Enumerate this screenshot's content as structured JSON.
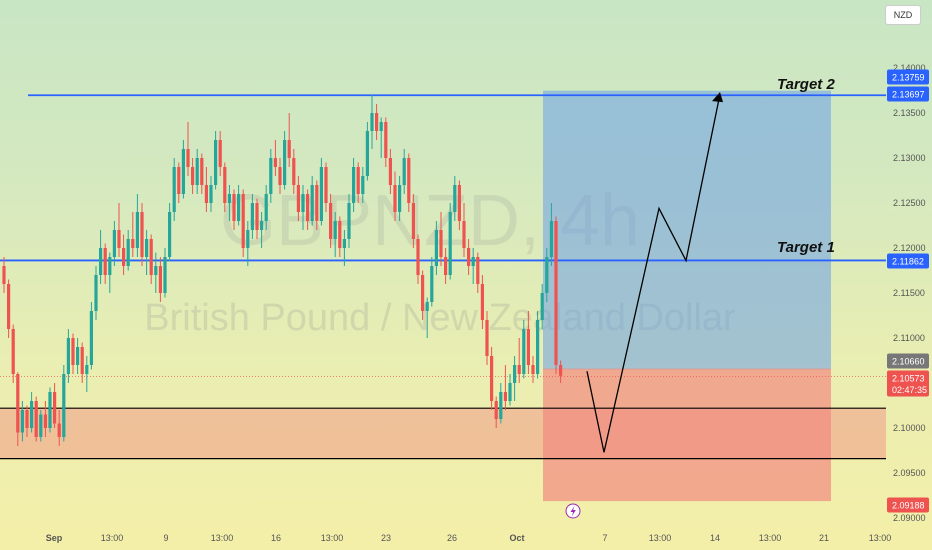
{
  "currency_button": "NZD",
  "watermark": {
    "symbol": "GBPNZD, 4h",
    "name": "British Pound / New Zealand Dollar"
  },
  "colors": {
    "up": "#26a69a",
    "down": "#ef5350",
    "level": "#2962ff",
    "target_zone": "#6a9ee8",
    "stop_zone": "#f28a80"
  },
  "chart_data": {
    "type": "candlestick",
    "symbol": "GBPNZD",
    "timeframe": "4h",
    "y_axis": {
      "range": [
        2.09,
        2.14
      ],
      "ticks": [
        "2.14000",
        "2.13500",
        "2.13000",
        "2.12500",
        "2.12000",
        "2.11500",
        "2.11000",
        "2.10000",
        "2.09500",
        "2.09000"
      ]
    },
    "x_axis": {
      "ticks": [
        "Sep",
        "13:00",
        "9",
        "13:00",
        "16",
        "13:00",
        "23",
        "26",
        "Oct",
        "7",
        "13:00",
        "14",
        "13:00",
        "21",
        "13:00"
      ]
    },
    "price_badges": [
      {
        "label": "2.13759",
        "color": "#2962ff"
      },
      {
        "label": "2.13697",
        "color": "#2962ff"
      },
      {
        "label": "2.11862",
        "color": "#2962ff"
      },
      {
        "label": "2.10660",
        "color": "#777777"
      },
      {
        "label": "2.10573",
        "sub": "02:47:35",
        "color": "#ef5350"
      },
      {
        "label": "2.09188",
        "color": "#ef5350"
      }
    ],
    "horizontal_levels": [
      {
        "price": 2.13697,
        "label": "Target 2",
        "color": "#2962ff"
      },
      {
        "price": 2.11862,
        "label": "Target 1",
        "color": "#2962ff"
      },
      {
        "price": 2.1022,
        "color": "#000000"
      },
      {
        "price": 2.0966,
        "color": "#000000"
      }
    ],
    "long_position": {
      "entry": 2.1066,
      "target": 2.13759,
      "stop": 2.09188
    },
    "support_zone": [
      2.0966,
      2.1022
    ],
    "current_price": 2.10573,
    "projection_path": [
      2.1063,
      2.0973,
      2.1244,
      2.1186,
      2.1371
    ],
    "candles": [
      [
        2.118,
        2.119,
        2.115,
        2.116
      ],
      [
        2.116,
        2.1165,
        2.11,
        2.111
      ],
      [
        2.111,
        2.1115,
        2.105,
        2.106
      ],
      [
        2.106,
        2.1062,
        2.098,
        2.0995
      ],
      [
        2.0995,
        2.103,
        2.0985,
        2.102
      ],
      [
        2.102,
        2.1025,
        2.099,
        2.1
      ],
      [
        2.1,
        2.104,
        2.0995,
        2.103
      ],
      [
        2.103,
        2.1035,
        2.0985,
        2.099
      ],
      [
        2.099,
        2.102,
        2.0985,
        2.1015
      ],
      [
        2.1015,
        2.103,
        2.099,
        2.1
      ],
      [
        2.1,
        2.1045,
        2.0995,
        2.104
      ],
      [
        2.104,
        2.105,
        2.1,
        2.1005
      ],
      [
        2.1005,
        2.102,
        2.098,
        2.099
      ],
      [
        2.099,
        2.107,
        2.0985,
        2.106
      ],
      [
        2.106,
        2.111,
        2.105,
        2.11
      ],
      [
        2.11,
        2.1105,
        2.106,
        2.107
      ],
      [
        2.107,
        2.11,
        2.106,
        2.109
      ],
      [
        2.109,
        2.1095,
        2.105,
        2.106
      ],
      [
        2.106,
        2.108,
        2.104,
        2.107
      ],
      [
        2.107,
        2.114,
        2.1065,
        2.113
      ],
      [
        2.113,
        2.118,
        2.112,
        2.117
      ],
      [
        2.117,
        2.122,
        2.116,
        2.12
      ],
      [
        2.12,
        2.1205,
        2.116,
        2.117
      ],
      [
        2.117,
        2.1195,
        2.115,
        2.119
      ],
      [
        2.119,
        2.123,
        2.118,
        2.122
      ],
      [
        2.122,
        2.125,
        2.119,
        2.12
      ],
      [
        2.12,
        2.1215,
        2.117,
        2.118
      ],
      [
        2.118,
        2.122,
        2.1175,
        2.121
      ],
      [
        2.121,
        2.124,
        2.119,
        2.12
      ],
      [
        2.12,
        2.126,
        2.119,
        2.124
      ],
      [
        2.124,
        2.125,
        2.118,
        2.119
      ],
      [
        2.119,
        2.122,
        2.117,
        2.121
      ],
      [
        2.121,
        2.1215,
        2.116,
        2.117
      ],
      [
        2.117,
        2.1195,
        2.115,
        2.118
      ],
      [
        2.118,
        2.119,
        2.114,
        2.115
      ],
      [
        2.115,
        2.12,
        2.1145,
        2.119
      ],
      [
        2.119,
        2.125,
        2.1185,
        2.124
      ],
      [
        2.124,
        2.13,
        2.123,
        2.129
      ],
      [
        2.129,
        2.1295,
        2.125,
        2.126
      ],
      [
        2.126,
        2.132,
        2.1255,
        2.131
      ],
      [
        2.131,
        2.134,
        2.128,
        2.129
      ],
      [
        2.129,
        2.13,
        2.126,
        2.127
      ],
      [
        2.127,
        2.131,
        2.126,
        2.13
      ],
      [
        2.13,
        2.1305,
        2.126,
        2.127
      ],
      [
        2.127,
        2.129,
        2.124,
        2.125
      ],
      [
        2.125,
        2.128,
        2.124,
        2.127
      ],
      [
        2.127,
        2.133,
        2.1265,
        2.132
      ],
      [
        2.132,
        2.133,
        2.128,
        2.129
      ],
      [
        2.129,
        2.1295,
        2.124,
        2.125
      ],
      [
        2.125,
        2.127,
        2.123,
        2.126
      ],
      [
        2.126,
        2.1265,
        2.122,
        2.123
      ],
      [
        2.123,
        2.127,
        2.1225,
        2.126
      ],
      [
        2.126,
        2.1265,
        2.119,
        2.12
      ],
      [
        2.12,
        2.123,
        2.118,
        2.122
      ],
      [
        2.122,
        2.126,
        2.121,
        2.125
      ],
      [
        2.125,
        2.1255,
        2.121,
        2.122
      ],
      [
        2.122,
        2.124,
        2.12,
        2.123
      ],
      [
        2.123,
        2.127,
        2.122,
        2.126
      ],
      [
        2.126,
        2.131,
        2.125,
        2.13
      ],
      [
        2.13,
        2.132,
        2.128,
        2.129
      ],
      [
        2.129,
        2.13,
        2.126,
        2.127
      ],
      [
        2.127,
        2.133,
        2.1265,
        2.132
      ],
      [
        2.132,
        2.135,
        2.129,
        2.13
      ],
      [
        2.13,
        2.131,
        2.126,
        2.127
      ],
      [
        2.127,
        2.128,
        2.123,
        2.124
      ],
      [
        2.124,
        2.127,
        2.122,
        2.126
      ],
      [
        2.126,
        2.1265,
        2.122,
        2.123
      ],
      [
        2.123,
        2.128,
        2.1225,
        2.127
      ],
      [
        2.127,
        2.1275,
        2.122,
        2.123
      ],
      [
        2.123,
        2.13,
        2.1225,
        2.129
      ],
      [
        2.129,
        2.1295,
        2.124,
        2.125
      ],
      [
        2.125,
        2.126,
        2.12,
        2.121
      ],
      [
        2.121,
        2.124,
        2.119,
        2.123
      ],
      [
        2.123,
        2.1235,
        2.119,
        2.12
      ],
      [
        2.12,
        2.122,
        2.118,
        2.121
      ],
      [
        2.121,
        2.126,
        2.12,
        2.125
      ],
      [
        2.125,
        2.13,
        2.124,
        2.129
      ],
      [
        2.129,
        2.1295,
        2.125,
        2.126
      ],
      [
        2.126,
        2.129,
        2.125,
        2.128
      ],
      [
        2.128,
        2.134,
        2.1275,
        2.133
      ],
      [
        2.133,
        2.137,
        2.131,
        2.135
      ],
      [
        2.135,
        2.136,
        2.132,
        2.133
      ],
      [
        2.133,
        2.1345,
        2.13,
        2.134
      ],
      [
        2.134,
        2.1345,
        2.129,
        2.13
      ],
      [
        2.13,
        2.131,
        2.126,
        2.127
      ],
      [
        2.127,
        2.1285,
        2.123,
        2.124
      ],
      [
        2.124,
        2.128,
        2.123,
        2.127
      ],
      [
        2.127,
        2.131,
        2.126,
        2.13
      ],
      [
        2.13,
        2.1305,
        2.124,
        2.125
      ],
      [
        2.125,
        2.126,
        2.12,
        2.121
      ],
      [
        2.121,
        2.1215,
        2.116,
        2.117
      ],
      [
        2.117,
        2.1175,
        2.112,
        2.113
      ],
      [
        2.113,
        2.1145,
        2.11,
        2.114
      ],
      [
        2.114,
        2.119,
        2.1135,
        2.118
      ],
      [
        2.118,
        2.123,
        2.117,
        2.122
      ],
      [
        2.122,
        2.124,
        2.118,
        2.119
      ],
      [
        2.119,
        2.12,
        2.116,
        2.117
      ],
      [
        2.117,
        2.125,
        2.1165,
        2.124
      ],
      [
        2.124,
        2.128,
        2.123,
        2.127
      ],
      [
        2.127,
        2.1275,
        2.122,
        2.123
      ],
      [
        2.123,
        2.125,
        2.119,
        2.12
      ],
      [
        2.12,
        2.121,
        2.117,
        2.118
      ],
      [
        2.118,
        2.12,
        2.116,
        2.119
      ],
      [
        2.119,
        2.1195,
        2.115,
        2.116
      ],
      [
        2.116,
        2.117,
        2.111,
        2.112
      ],
      [
        2.112,
        2.113,
        2.107,
        2.108
      ],
      [
        2.108,
        2.109,
        2.102,
        2.103
      ],
      [
        2.103,
        2.1035,
        2.1,
        2.101
      ],
      [
        2.101,
        2.105,
        2.1005,
        2.104
      ],
      [
        2.104,
        2.107,
        2.102,
        2.103
      ],
      [
        2.103,
        2.106,
        2.1025,
        2.105
      ],
      [
        2.105,
        2.108,
        2.103,
        2.107
      ],
      [
        2.107,
        2.11,
        2.105,
        2.106
      ],
      [
        2.106,
        2.112,
        2.1055,
        2.111
      ],
      [
        2.111,
        2.113,
        2.106,
        2.107
      ],
      [
        2.107,
        2.108,
        2.105,
        2.106
      ],
      [
        2.106,
        2.113,
        2.1055,
        2.112
      ],
      [
        2.112,
        2.116,
        2.111,
        2.115
      ],
      [
        2.115,
        2.12,
        2.114,
        2.119
      ],
      [
        2.119,
        2.125,
        2.118,
        2.123
      ],
      [
        2.123,
        2.1235,
        2.106,
        2.107
      ],
      [
        2.107,
        2.1075,
        2.105,
        2.1058
      ]
    ]
  }
}
